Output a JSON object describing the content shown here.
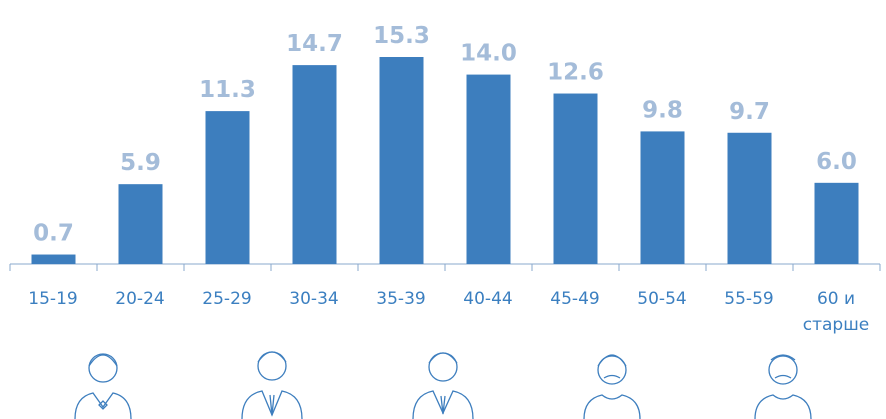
{
  "chart_data": {
    "type": "bar",
    "categories": [
      "15-19",
      "20-24",
      "25-29",
      "30-34",
      "35-39",
      "40-44",
      "45-49",
      "50-54",
      "55-59",
      "60 и старше"
    ],
    "values": [
      0.7,
      5.9,
      11.3,
      14.7,
      15.3,
      14.0,
      12.6,
      9.8,
      9.7,
      6.0
    ],
    "value_labels": [
      "0.7",
      "5.9",
      "11.3",
      "14.7",
      "15.3",
      "14.0",
      "12.6",
      "9.8",
      "9.7",
      "6.0"
    ],
    "color": "#3d7ebe"
  }
}
